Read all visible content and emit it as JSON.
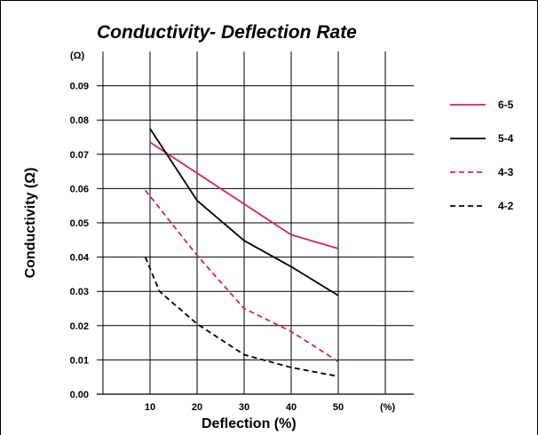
{
  "chart_data": {
    "type": "line",
    "title": "Conductivity- Deflection Rate",
    "xlabel": "Deflection (%)",
    "ylabel": "Conductivity (Ω)",
    "y_unit": "(Ω)",
    "x_unit": "(%)",
    "xlim": [
      0,
      60
    ],
    "ylim": [
      0,
      0.1
    ],
    "x_ticks": [
      "10",
      "20",
      "30",
      "40",
      "50"
    ],
    "y_ticks": [
      "0.00",
      "0.01",
      "0.02",
      "0.03",
      "0.04",
      "0.05",
      "0.06",
      "0.07",
      "0.08",
      "0.09"
    ],
    "grid": true,
    "legend_position": "right",
    "series": [
      {
        "name": "6-5",
        "color": "#d6206f",
        "dash": "solid",
        "x": [
          10,
          20,
          30,
          40,
          50
        ],
        "y": [
          0.0735,
          0.0645,
          0.0555,
          0.0465,
          0.0425
        ]
      },
      {
        "name": "5-4",
        "color": "#000000",
        "dash": "solid",
        "x": [
          10,
          20,
          30,
          40,
          50
        ],
        "y": [
          0.0775,
          0.0565,
          0.0448,
          0.0372,
          0.0288
        ]
      },
      {
        "name": "4-3",
        "color": "#d6206f",
        "dash": "dashed",
        "x": [
          9,
          20,
          30,
          40,
          50
        ],
        "y": [
          0.0595,
          0.0405,
          0.025,
          0.0183,
          0.0095
        ]
      },
      {
        "name": "4-2",
        "color": "#000000",
        "dash": "dashed",
        "x": [
          9,
          12,
          20,
          30,
          40,
          50
        ],
        "y": [
          0.04,
          0.03,
          0.0205,
          0.0115,
          0.0078,
          0.0052
        ]
      }
    ]
  }
}
